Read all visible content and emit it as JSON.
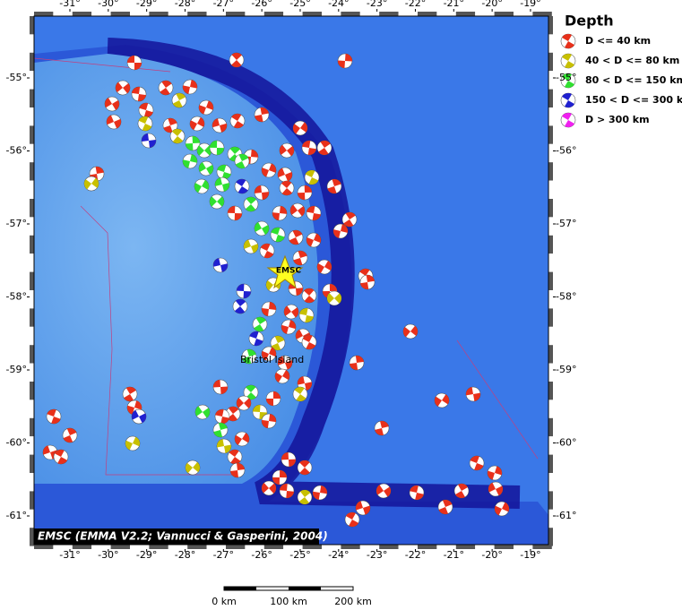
{
  "map": {
    "lon_ticks": [
      {
        "value": -31,
        "label": "-31°"
      },
      {
        "value": -30,
        "label": "-30°"
      },
      {
        "value": -29,
        "label": "-29°"
      },
      {
        "value": -28,
        "label": "-28°"
      },
      {
        "value": -27,
        "label": "-27°"
      },
      {
        "value": -26,
        "label": "-26°"
      },
      {
        "value": -25,
        "label": "-25°"
      },
      {
        "value": -24,
        "label": "-24°"
      },
      {
        "value": -23,
        "label": "-23°"
      },
      {
        "value": -22,
        "label": "-22°"
      },
      {
        "value": -21,
        "label": "-21°"
      },
      {
        "value": -20,
        "label": "-20°"
      },
      {
        "value": -19,
        "label": "-19°"
      }
    ],
    "lat_ticks": [
      {
        "value": -55,
        "label": "-55°"
      },
      {
        "value": -56,
        "label": "-56°"
      },
      {
        "value": -57,
        "label": "-57°"
      },
      {
        "value": -58,
        "label": "-58°"
      },
      {
        "value": -59,
        "label": "-59°"
      },
      {
        "value": -60,
        "label": "-60°"
      },
      {
        "value": -61,
        "label": "-61°"
      }
    ],
    "labels": {
      "station": "EMSC",
      "island": "Bristol Island",
      "credit": "EMSC (EMMA V2.2; Vannucci & Gasperini, 2004)"
    },
    "legend": {
      "title": "Depth",
      "items": [
        {
          "name": "D <= 40 km",
          "color": "#e8301a"
        },
        {
          "name": "40 < D <= 80 km",
          "color": "#c8c000"
        },
        {
          "name": "80 < D <= 150 km",
          "color": "#30e030"
        },
        {
          "name": "150 < D <= 300 km",
          "color": "#2020d0"
        },
        {
          "name": "D > 300 km",
          "color": "#f020f0"
        }
      ]
    },
    "scale": [
      "0 km",
      "100 km",
      "200 km"
    ]
  }
}
